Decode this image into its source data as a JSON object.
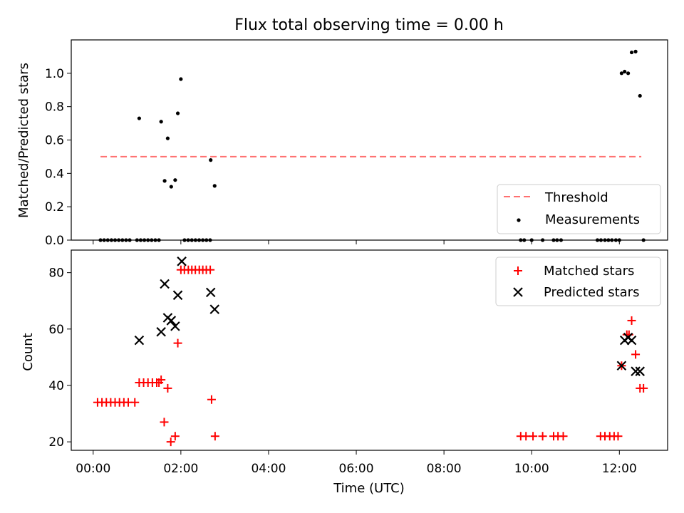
{
  "chart_data": [
    {
      "type": "scatter",
      "title": "Flux total observing time = 0.00 h",
      "xlabel": "",
      "ylabel": "Matched/Predicted stars",
      "xlim_hours": [
        -0.5,
        13.1
      ],
      "ylim": [
        0,
        1.2
      ],
      "yticks": [
        0.0,
        0.2,
        0.4,
        0.6,
        0.8,
        1.0
      ],
      "ytick_labels": [
        "0.0",
        "0.2",
        "0.4",
        "0.6",
        "0.8",
        "1.0"
      ],
      "legend": {
        "position": "lower-right",
        "entries": [
          "Threshold",
          "Measurements"
        ]
      },
      "threshold": {
        "name": "Threshold",
        "value": 0.5,
        "x_start": 0.167,
        "x_end": 12.5,
        "color": "#ff7070",
        "style": "dashed"
      },
      "series": [
        {
          "name": "Measurements",
          "color": "#000000",
          "x": [
            0.167,
            0.25,
            0.333,
            0.417,
            0.5,
            0.583,
            0.667,
            0.75,
            0.833,
            1.0,
            1.083,
            1.167,
            1.25,
            1.333,
            1.417,
            1.5,
            2.083,
            2.167,
            2.25,
            2.333,
            2.417,
            2.5,
            2.583,
            2.667,
            1.05,
            1.55,
            1.63,
            1.7,
            1.78,
            1.87,
            1.93,
            2.0,
            2.68,
            2.77,
            9.75,
            9.83,
            10.0,
            10.25,
            10.5,
            10.58,
            10.67,
            11.5,
            11.58,
            11.67,
            11.75,
            11.83,
            11.92,
            12.0,
            12.05,
            12.12,
            12.2,
            12.28,
            12.37,
            12.47,
            12.55
          ],
          "y": [
            0,
            0,
            0,
            0,
            0,
            0,
            0,
            0,
            0,
            0,
            0,
            0,
            0,
            0,
            0,
            0,
            0,
            0,
            0,
            0,
            0,
            0,
            0,
            0,
            0.73,
            0.71,
            0.355,
            0.61,
            0.32,
            0.36,
            0.76,
            0.965,
            0.48,
            0.325,
            0,
            0,
            0,
            0,
            0,
            0,
            0,
            0,
            0,
            0,
            0,
            0,
            0,
            0,
            1.0,
            1.01,
            1.0,
            1.125,
            1.13,
            0.865,
            0
          ]
        }
      ]
    },
    {
      "type": "scatter",
      "title": "",
      "xlabel": "Time (UTC)",
      "ylabel": "Count",
      "xlim_hours": [
        -0.5,
        13.1
      ],
      "ylim": [
        17,
        88
      ],
      "yticks": [
        20,
        40,
        60,
        80
      ],
      "ytick_labels": [
        "20",
        "40",
        "60",
        "80"
      ],
      "xticks_hours": [
        0,
        2,
        4,
        6,
        8,
        10,
        12
      ],
      "xtick_labels": [
        "00:00",
        "02:00",
        "04:00",
        "06:00",
        "08:00",
        "10:00",
        "12:00"
      ],
      "legend": {
        "position": "upper-right",
        "entries": [
          "Matched stars",
          "Predicted stars"
        ]
      },
      "series": [
        {
          "name": "Matched stars",
          "marker": "plus",
          "color": "#ff0000",
          "x": [
            0.1,
            0.2,
            0.3,
            0.4,
            0.5,
            0.6,
            0.7,
            0.8,
            0.95,
            1.05,
            1.15,
            1.25,
            1.35,
            1.45,
            1.5,
            1.55,
            1.62,
            1.7,
            1.77,
            1.87,
            1.93,
            2.0,
            2.08,
            2.17,
            2.25,
            2.33,
            2.42,
            2.5,
            2.58,
            2.67,
            2.7,
            2.78,
            9.75,
            9.87,
            10.03,
            10.25,
            10.5,
            10.6,
            10.72,
            11.57,
            11.67,
            11.78,
            11.88,
            11.97,
            12.05,
            12.17,
            12.22,
            12.28,
            12.37,
            12.47,
            12.55
          ],
          "y": [
            34,
            34,
            34,
            34,
            34,
            34,
            34,
            34,
            34,
            41,
            41,
            41,
            41,
            41,
            41,
            42,
            27,
            39,
            20,
            22,
            55,
            81,
            81,
            81,
            81,
            81,
            81,
            81,
            81,
            81,
            35,
            22,
            22,
            22,
            22,
            22,
            22,
            22,
            22,
            22,
            22,
            22,
            22,
            22,
            47,
            58,
            58,
            63,
            51,
            39,
            39
          ]
        },
        {
          "name": "Predicted stars",
          "marker": "x",
          "color": "#000000",
          "x": [
            1.05,
            1.55,
            1.63,
            1.7,
            1.78,
            1.87,
            1.93,
            2.02,
            2.68,
            2.77,
            12.05,
            12.12,
            12.2,
            12.28,
            12.37,
            12.47
          ],
          "y": [
            56,
            59,
            76,
            64,
            63,
            61,
            72,
            84,
            73,
            67,
            47,
            56,
            57,
            56,
            45,
            45
          ]
        }
      ]
    }
  ]
}
